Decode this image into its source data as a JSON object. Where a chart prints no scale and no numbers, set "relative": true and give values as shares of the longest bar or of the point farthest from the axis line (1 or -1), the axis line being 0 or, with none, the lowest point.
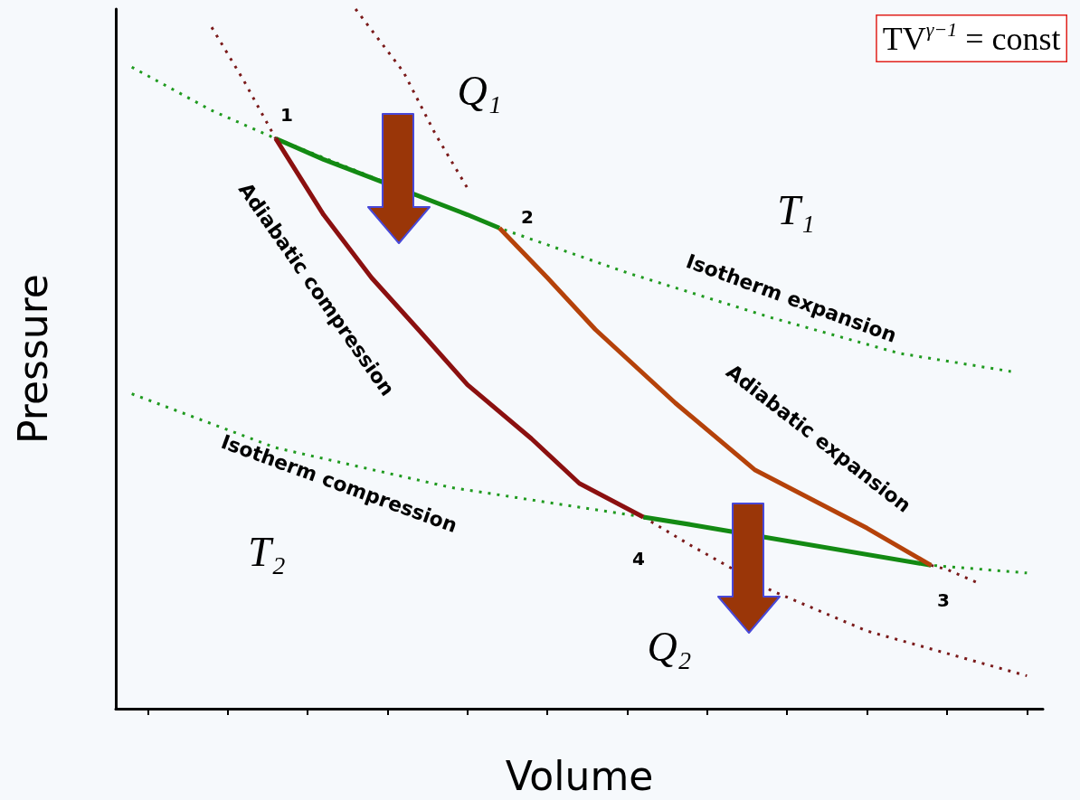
{
  "chart_data": {
    "type": "line",
    "relative": true,
    "xlabel": "Volume",
    "ylabel": "Pressure",
    "categories": [
      null,
      null,
      null,
      null,
      null,
      null,
      null,
      null,
      null,
      null,
      null,
      null,
      null,
      null,
      null,
      null,
      null,
      null,
      null,
      null,
      null,
      null,
      null,
      null,
      null,
      null,
      null,
      null,
      null,
      null,
      null,
      null,
      null,
      null,
      null,
      null,
      null,
      null,
      null,
      null,
      null,
      null,
      null,
      null,
      null,
      null,
      null,
      null,
      null,
      null,
      null,
      null,
      null,
      null,
      null,
      null,
      null,
      null,
      null
    ],
    "grid": false,
    "marker": "none",
    "series": [
      {
        "color": "#1f9a1f",
        "line_style": "dotted",
        "values": [
          null,
          0.917,
          null,
          null,
          null,
          null,
          0.855,
          null,
          null,
          null,
          0.815,
          null,
          null,
          null,
          null,
          null,
          null,
          null,
          null,
          null,
          null,
          null,
          null,
          null,
          0.687,
          null,
          null,
          null,
          null,
          null,
          null,
          null,
          0.623,
          null,
          null,
          null,
          null,
          null,
          null,
          null,
          null,
          0.559,
          null,
          null,
          null,
          null,
          null,
          null,
          null,
          0.508,
          null,
          null,
          null,
          null,
          null,
          null,
          0.482,
          null,
          null
        ]
      },
      {
        "color": "#1f9a1f",
        "line_style": "dotted",
        "values": [
          null,
          0.45,
          null,
          null,
          null,
          null,
          null,
          null,
          null,
          null,
          0.373,
          null,
          null,
          null,
          null,
          null,
          null,
          null,
          null,
          null,
          null,
          0.316,
          null,
          null,
          null,
          null,
          null,
          null,
          null,
          null,
          null,
          null,
          null,
          0.274,
          null,
          null,
          null,
          null,
          null,
          null,
          null,
          null,
          null,
          null,
          null,
          null,
          null,
          null,
          null,
          null,
          null,
          0.205,
          null,
          null,
          null,
          null,
          null,
          0.194,
          null
        ]
      },
      {
        "color": "#7a1a1a",
        "line_style": "dotted",
        "values": [
          null,
          null,
          null,
          null,
          null,
          null,
          null,
          null,
          null,
          null,
          null,
          null,
          null,
          null,
          null,
          1.0,
          null,
          null,
          0.91,
          null,
          0.821,
          null,
          0.744,
          null,
          null,
          null,
          null,
          null,
          null,
          null,
          null,
          null,
          null,
          null,
          null,
          null,
          null,
          null,
          null,
          null,
          null,
          null,
          null,
          null,
          null,
          null,
          null,
          null,
          null,
          null,
          null,
          null,
          null,
          null,
          null,
          null,
          null,
          null,
          null
        ]
      },
      {
        "color": "#7a1a1a",
        "line_style": "dotted",
        "values": [
          null,
          null,
          null,
          null,
          null,
          null,
          0.974,
          null,
          0.898,
          null,
          0.815,
          null,
          null,
          null,
          null,
          null,
          null,
          null,
          null,
          null,
          null,
          null,
          null,
          null,
          null,
          null,
          null,
          null,
          null,
          null,
          null,
          null,
          null,
          null,
          null,
          null,
          null,
          null,
          null,
          null,
          null,
          null,
          null,
          null,
          null,
          null,
          null,
          null,
          null,
          null,
          null,
          null,
          null,
          null,
          null,
          null,
          null,
          null,
          null
        ]
      },
      {
        "color": "#7a1a1a",
        "line_style": "dotted",
        "values": [
          null,
          null,
          null,
          null,
          null,
          null,
          null,
          null,
          null,
          null,
          null,
          null,
          null,
          null,
          null,
          null,
          null,
          null,
          null,
          null,
          null,
          null,
          null,
          null,
          null,
          null,
          null,
          null,
          null,
          null,
          null,
          null,
          null,
          0.274,
          null,
          null,
          0.233,
          null,
          null,
          null,
          null,
          0.169,
          null,
          null,
          null,
          null,
          null,
          0.111,
          null,
          null,
          null,
          null,
          null,
          null,
          null,
          null,
          null,
          0.047,
          null
        ]
      },
      {
        "color": "#7a1a1a",
        "line_style": "dotted",
        "values": [
          null,
          null,
          null,
          null,
          null,
          null,
          null,
          null,
          null,
          null,
          null,
          null,
          null,
          null,
          null,
          null,
          null,
          null,
          null,
          null,
          null,
          null,
          null,
          null,
          null,
          null,
          null,
          null,
          null,
          null,
          null,
          null,
          null,
          null,
          null,
          null,
          null,
          null,
          null,
          null,
          null,
          null,
          null,
          null,
          null,
          null,
          null,
          null,
          null,
          null,
          null,
          0.205,
          0.199,
          null,
          0.179,
          null,
          null,
          null,
          null
        ]
      },
      {
        "color": "#138a13",
        "line_style": "solid",
        "values": [
          null,
          null,
          null,
          null,
          null,
          null,
          null,
          null,
          null,
          null,
          0.815,
          null,
          null,
          0.785,
          null,
          null,
          null,
          null,
          null,
          null,
          null,
          null,
          0.706,
          null,
          0.687,
          null,
          null,
          null,
          null,
          null,
          null,
          null,
          null,
          null,
          null,
          null,
          null,
          null,
          null,
          null,
          null,
          null,
          null,
          null,
          null,
          null,
          null,
          null,
          null,
          null,
          null,
          null,
          null,
          null,
          null,
          null,
          null,
          null,
          null
        ]
      },
      {
        "color": "#138a13",
        "line_style": "solid",
        "values": [
          null,
          null,
          null,
          null,
          null,
          null,
          null,
          null,
          null,
          null,
          null,
          null,
          null,
          null,
          null,
          null,
          null,
          null,
          null,
          null,
          null,
          null,
          null,
          null,
          null,
          null,
          null,
          null,
          null,
          null,
          null,
          null,
          null,
          0.274,
          null,
          null,
          0.263,
          null,
          null,
          null,
          null,
          null,
          null,
          null,
          null,
          null,
          null,
          null,
          null,
          null,
          null,
          0.205,
          null,
          null,
          null,
          null,
          null,
          null,
          null
        ]
      },
      {
        "color": "#8b1010",
        "line_style": "solid",
        "values": [
          null,
          null,
          null,
          null,
          null,
          null,
          null,
          null,
          null,
          null,
          0.815,
          null,
          null,
          0.706,
          null,
          null,
          0.616,
          null,
          null,
          0.54,
          null,
          null,
          0.463,
          null,
          null,
          null,
          0.386,
          null,
          null,
          0.322,
          null,
          null,
          null,
          0.274,
          null,
          null,
          null,
          null,
          null,
          null,
          null,
          null,
          null,
          null,
          null,
          null,
          null,
          null,
          null,
          null,
          null,
          null,
          null,
          null,
          null,
          null,
          null,
          null,
          null
        ]
      },
      {
        "color": "#b5420a",
        "line_style": "solid",
        "values": [
          null,
          null,
          null,
          null,
          null,
          null,
          null,
          null,
          null,
          null,
          null,
          null,
          null,
          null,
          null,
          null,
          null,
          null,
          null,
          null,
          null,
          null,
          null,
          null,
          0.687,
          null,
          null,
          0.616,
          null,
          null,
          0.542,
          null,
          null,
          null,
          null,
          0.437,
          null,
          null,
          null,
          null,
          0.341,
          null,
          null,
          null,
          null,
          null,
          null,
          0.258,
          null,
          null,
          null,
          0.205,
          null,
          null,
          null,
          null,
          null,
          null,
          null
        ]
      }
    ],
    "annotations": [
      "1",
      "2",
      "3",
      "4",
      "Q₁",
      "Q₂",
      "T₁",
      "T₂",
      "Adiabatic compression",
      "Isotherm expansion",
      "Adiabatic expansion",
      "Isotherm compression",
      "TV$^{γ−1}$ = const"
    ]
  }
}
